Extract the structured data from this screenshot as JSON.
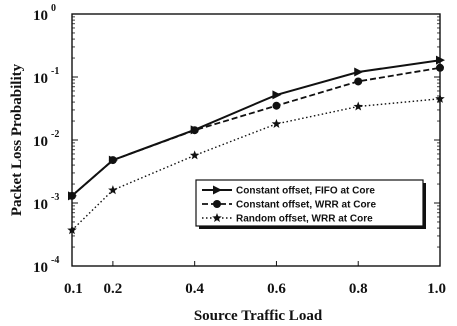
{
  "chart_data": {
    "type": "line",
    "xlabel": "Source Traffic Load",
    "ylabel": "Packet Loss Probability",
    "x_ticks": [
      "0.1",
      "0.2",
      "0.4",
      "0.6",
      "0.8",
      "1.0"
    ],
    "y_ticks": [
      {
        "base": "10",
        "exp": "0"
      },
      {
        "base": "10",
        "exp": "-1"
      },
      {
        "base": "10",
        "exp": "-2"
      },
      {
        "base": "10",
        "exp": "-3"
      },
      {
        "base": "10",
        "exp": "-4"
      }
    ],
    "xlim": [
      0.1,
      1.0
    ],
    "ylim": [
      0.0001,
      1
    ],
    "y_scale": "log",
    "grid": false,
    "legend_position": "lower-right",
    "x": [
      0.1,
      0.2,
      0.4,
      0.6,
      0.8,
      1.0
    ],
    "series": [
      {
        "name": "Constant offset, FIFO at Core",
        "values": [
          0.0013,
          0.0048,
          0.0145,
          0.052,
          0.12,
          0.185
        ],
        "line_style": "solid",
        "marker": "triangle-right"
      },
      {
        "name": "Constant offset, WRR at Core",
        "values": [
          0.0013,
          0.0048,
          0.0143,
          0.035,
          0.085,
          0.14
        ],
        "line_style": "dashed",
        "marker": "circle"
      },
      {
        "name": "Random offset, WRR at Core",
        "values": [
          0.00037,
          0.0016,
          0.0057,
          0.018,
          0.034,
          0.045
        ],
        "line_style": "dotted",
        "marker": "star"
      }
    ]
  }
}
